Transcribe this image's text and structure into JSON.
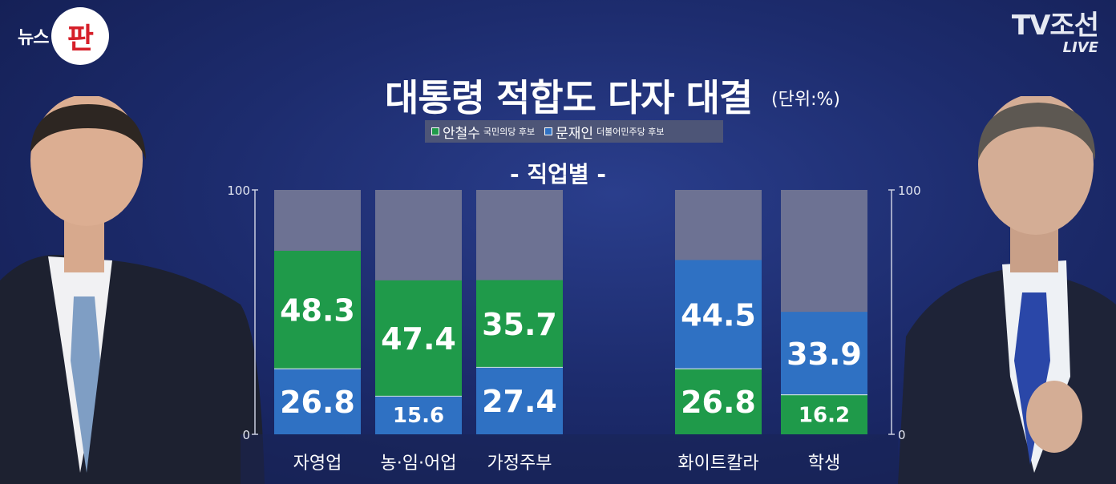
{
  "branding": {
    "left_logo_text": "뉴스",
    "left_logo_circle": "판",
    "right_logo_network": "TV조선",
    "right_logo_live": "LIVE"
  },
  "title": "대통령 적합도 다자 대결",
  "unit": "(단위:%)",
  "legend": [
    {
      "name": "안철수",
      "sub": "국민의당 후보",
      "color": "#1f9a4a"
    },
    {
      "name": "문재인",
      "sub": "더불어민주당 후보",
      "color": "#2f71c3"
    }
  ],
  "subtitle": "- 직업별 -",
  "chart_data": {
    "type": "bar",
    "stacked": true,
    "title": "대통령 적합도 다자 대결",
    "subtitle": "- 직업별 -",
    "unit": "(단위:%)",
    "ylim": [
      0,
      100
    ],
    "yticks": [
      "0",
      "100"
    ],
    "categories": [
      "자영업",
      "농·임·어업",
      "가정주부",
      "화이트칼라",
      "학생"
    ],
    "series": [
      {
        "name": "안철수",
        "color": "#1f9a4a",
        "values": [
          48.3,
          47.4,
          35.7,
          26.8,
          16.2
        ]
      },
      {
        "name": "문재인",
        "color": "#2f71c3",
        "values": [
          26.8,
          15.6,
          27.4,
          44.5,
          33.9
        ]
      }
    ],
    "order_top": [
      "안철수",
      "안철수",
      "안철수",
      "문재인",
      "문재인"
    ],
    "remainder_color": "#6d7293"
  }
}
